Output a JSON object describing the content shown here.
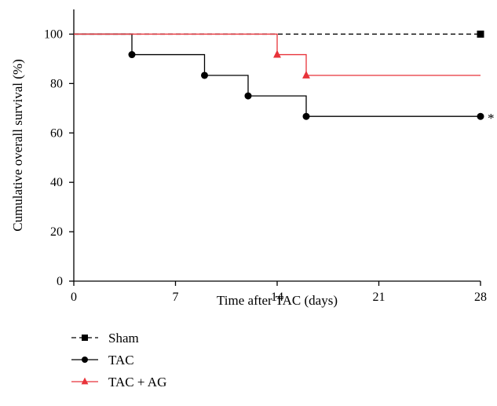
{
  "chart_data": {
    "type": "line",
    "step": true,
    "xlabel": "Time after TAC (days)",
    "ylabel": "Cumulative overall survival (%)",
    "xlim": [
      0,
      28
    ],
    "ylim": [
      0,
      110
    ],
    "xticks": [
      0,
      7,
      14,
      21,
      28
    ],
    "yticks": [
      0,
      20,
      40,
      60,
      80,
      100
    ],
    "grid": false,
    "legend_position": "bottom-left",
    "series": [
      {
        "name": "Sham",
        "color": "#000000",
        "line_style": "dashed",
        "marker": "square",
        "points": [
          [
            0,
            100
          ],
          [
            28,
            100
          ]
        ],
        "markers": [
          [
            28,
            100
          ]
        ]
      },
      {
        "name": "TAC",
        "color": "#000000",
        "line_style": "solid",
        "marker": "circle",
        "points": [
          [
            0,
            100
          ],
          [
            4,
            100
          ],
          [
            4,
            91.7
          ],
          [
            9,
            91.7
          ],
          [
            9,
            83.3
          ],
          [
            12,
            83.3
          ],
          [
            12,
            75
          ],
          [
            16,
            75
          ],
          [
            16,
            66.7
          ],
          [
            28,
            66.7
          ]
        ],
        "markers": [
          [
            4,
            91.7
          ],
          [
            9,
            83.3
          ],
          [
            12,
            75
          ],
          [
            16,
            66.7
          ],
          [
            28,
            66.7
          ]
        ]
      },
      {
        "name": "TAC + AG",
        "color": "#e8333a",
        "line_style": "solid",
        "marker": "triangle",
        "points": [
          [
            0,
            100
          ],
          [
            14,
            100
          ],
          [
            14,
            91.7
          ],
          [
            16,
            91.7
          ],
          [
            16,
            83.3
          ],
          [
            28,
            83.3
          ]
        ],
        "markers": [
          [
            14,
            91.7
          ],
          [
            16,
            83.3
          ]
        ]
      }
    ],
    "annotations": [
      {
        "text": "*",
        "x": 28,
        "y": 66.7
      }
    ]
  }
}
